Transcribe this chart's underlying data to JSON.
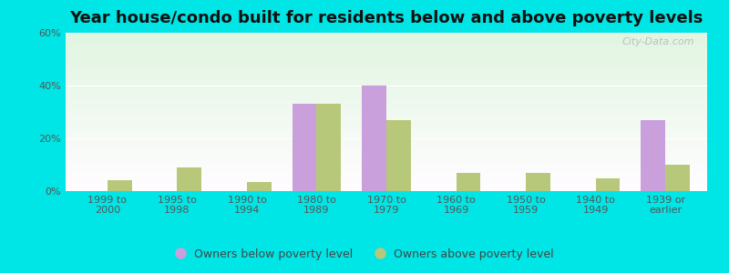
{
  "title": "Year house/condo built for residents below and above poverty levels",
  "categories": [
    "1999 to\n2000",
    "1995 to\n1998",
    "1990 to\n1994",
    "1980 to\n1989",
    "1970 to\n1979",
    "1960 to\n1969",
    "1950 to\n1959",
    "1940 to\n1949",
    "1939 or\nearlier"
  ],
  "below_poverty": [
    0,
    0,
    0,
    33,
    40,
    0,
    0,
    0,
    27
  ],
  "above_poverty": [
    4,
    9,
    3.5,
    33,
    27,
    7,
    7,
    5,
    10
  ],
  "below_color": "#c9a0dc",
  "above_color": "#b8c87a",
  "ylim": [
    0,
    60
  ],
  "yticks": [
    0,
    20,
    40,
    60
  ],
  "ytick_labels": [
    "0%",
    "20%",
    "40%",
    "60%"
  ],
  "bar_width": 0.35,
  "outer_color": "#00e5e5",
  "legend_below": "Owners below poverty level",
  "legend_above": "Owners above poverty level",
  "title_fontsize": 13,
  "tick_fontsize": 8,
  "legend_fontsize": 9,
  "watermark": "City-Data.com"
}
